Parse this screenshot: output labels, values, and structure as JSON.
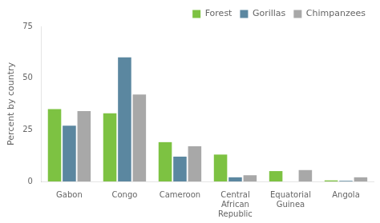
{
  "chart_data": {
    "type": "bar",
    "categories": [
      "Gabon",
      "Congo",
      "Cameroon",
      "Central\nAfrican\nRepublic",
      "Equatorial\nGuinea",
      "Angola"
    ],
    "series": [
      {
        "name": "Forest",
        "color": "#7DC242",
        "values": [
          35,
          33,
          19,
          13,
          5,
          0.5
        ]
      },
      {
        "name": "Gorillas",
        "color": "#5B87A0",
        "values": [
          27,
          60,
          12,
          2,
          0,
          0.3
        ]
      },
      {
        "name": "Chimpanzees",
        "color": "#A8A8A8",
        "values": [
          34,
          42,
          17,
          3,
          5.5,
          2
        ]
      }
    ],
    "y_label": "Percent by country",
    "ylim": [
      0,
      75
    ],
    "yticks": [
      0,
      25,
      50,
      75
    ],
    "grid": false,
    "legend": "upper right"
  }
}
